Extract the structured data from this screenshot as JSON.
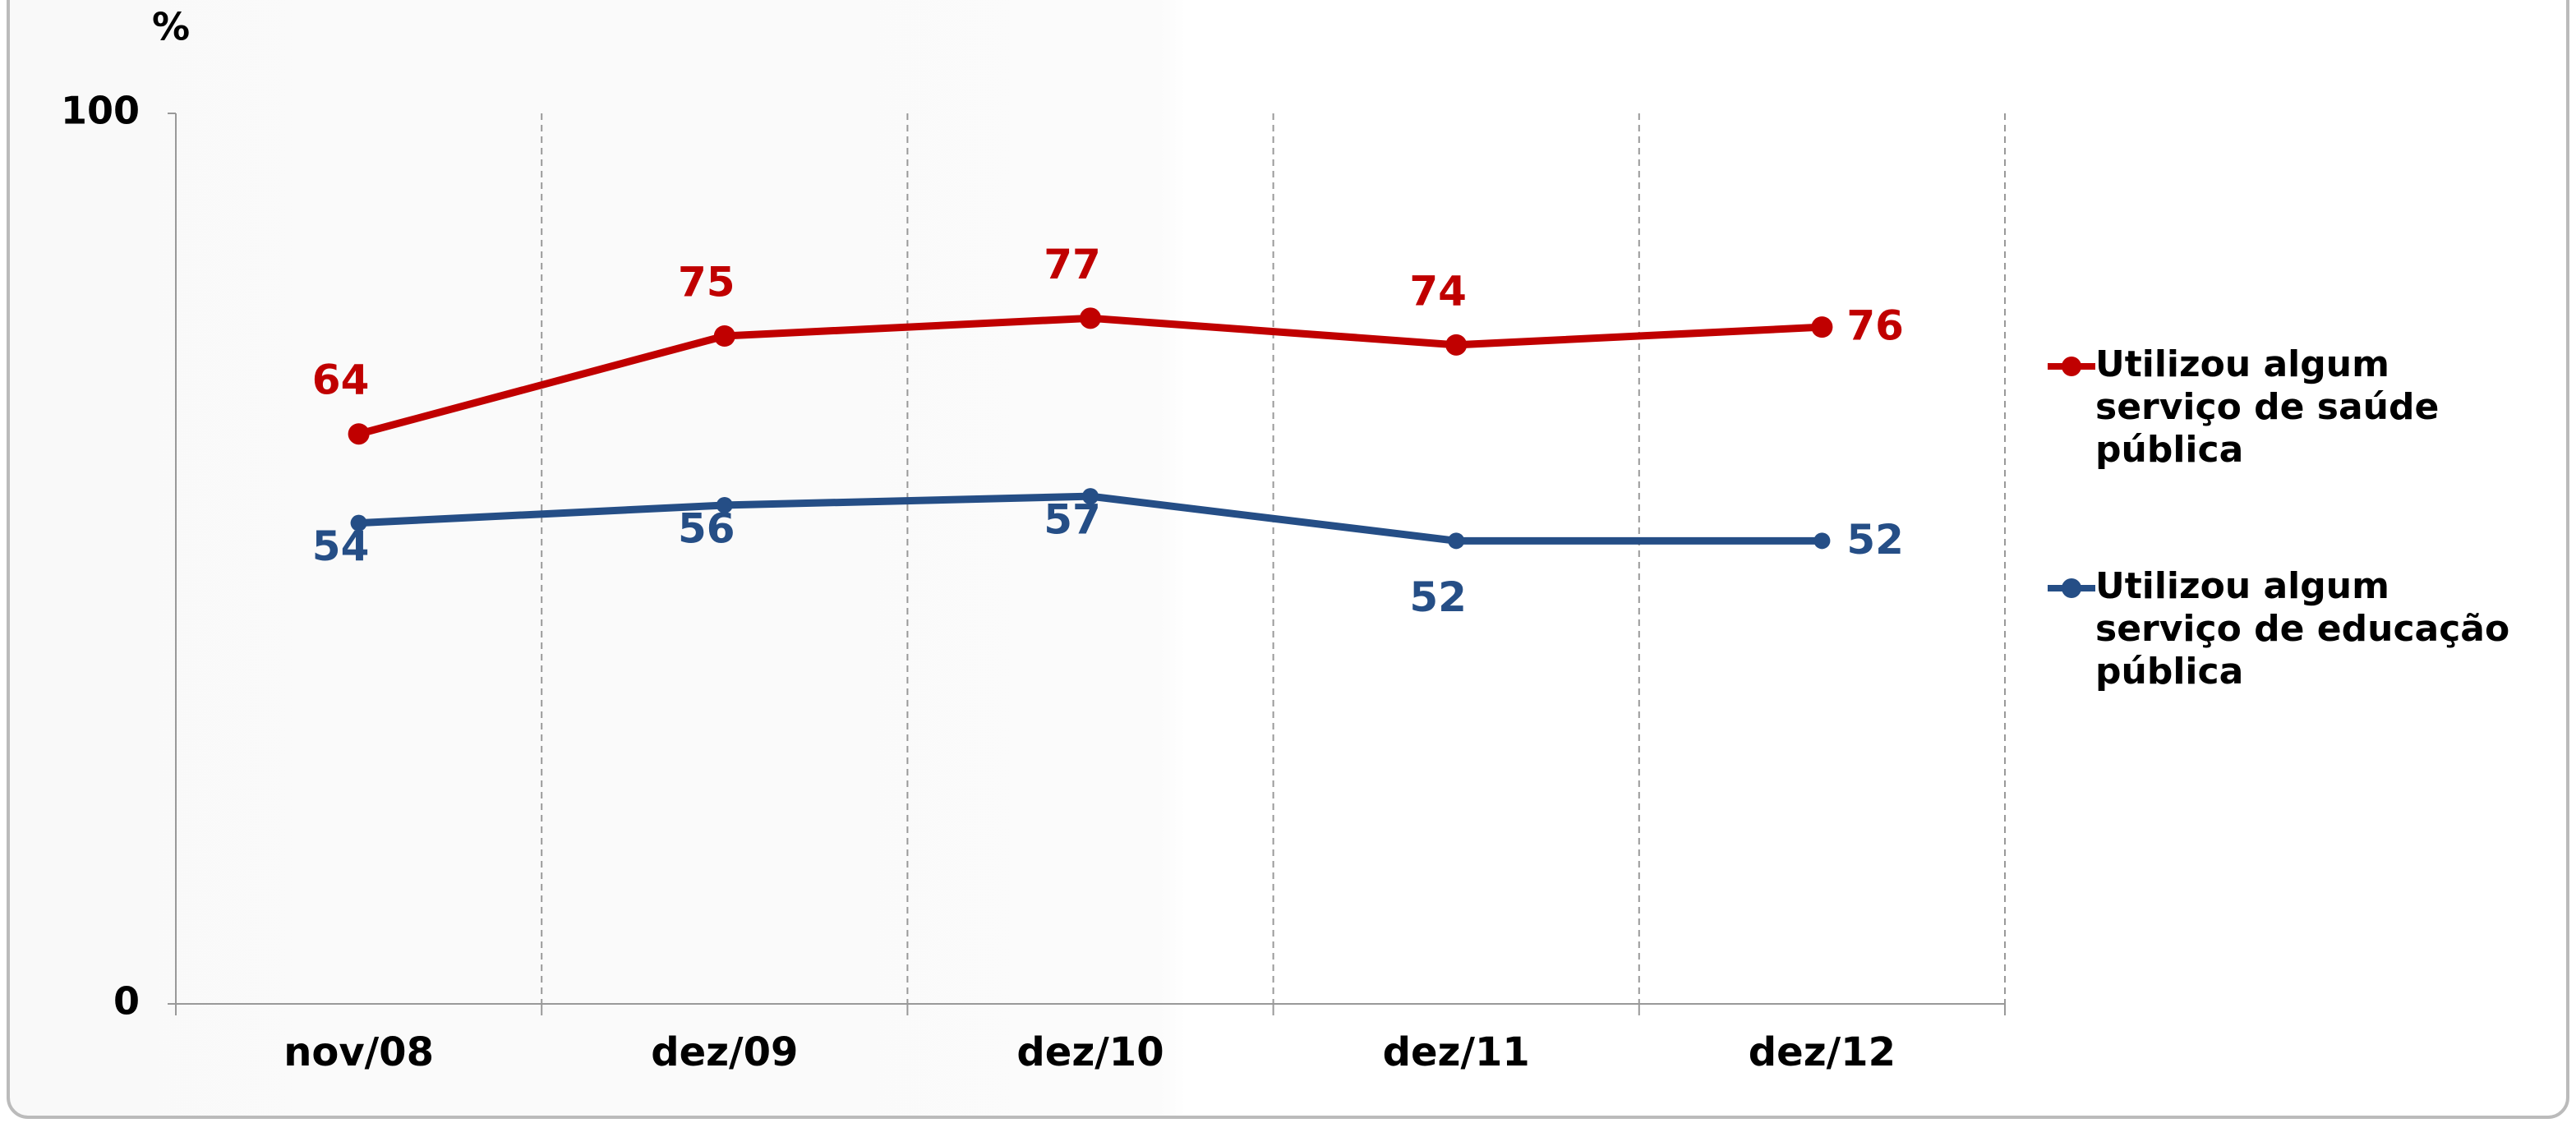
{
  "chart_data": {
    "type": "line",
    "y_label": "%",
    "categories": [
      "nov/08",
      "dez/09",
      "dez/10",
      "dez/11",
      "dez/12"
    ],
    "series": [
      {
        "name": "Utilizou algum serviço de saúde pública",
        "color": "#c00000",
        "values": [
          64,
          75,
          77,
          74,
          76
        ]
      },
      {
        "name": "Utilizou algum serviço de educação pública",
        "color": "#254e86",
        "values": [
          54,
          56,
          57,
          52,
          52
        ]
      }
    ],
    "ylim": [
      0,
      100
    ],
    "yticks": [
      0,
      100
    ],
    "legend": "right"
  }
}
